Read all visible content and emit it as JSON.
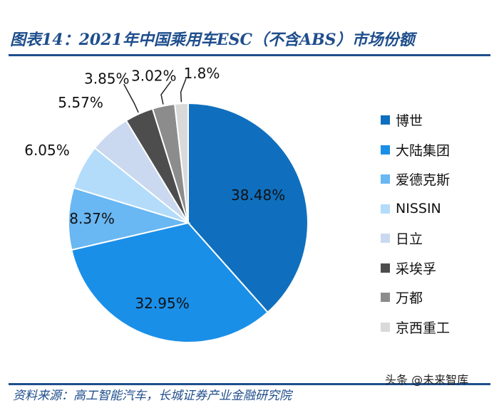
{
  "title": "图表14：2021年中国乘用车ESC（不含ABS）市场份额",
  "source_text": "资料来源：高工智能汽车，长城证券产业金融研究院",
  "watermark_text": "头条 @未来智库",
  "chart_data": {
    "type": "pie",
    "title": "图表14：2021年中国乘用车ESC（不含ABS）市场份额",
    "legend_position": "right",
    "slices": [
      {
        "name": "博世",
        "value": 38.48,
        "label": "38.48%",
        "color": "#0f6fbe"
      },
      {
        "name": "大陆集团",
        "value": 32.95,
        "label": "32.95%",
        "color": "#1a8fe8"
      },
      {
        "name": "爱德克斯",
        "value": 8.37,
        "label": "8.37%",
        "color": "#69b7f3"
      },
      {
        "name": "NISSIN",
        "value": 6.05,
        "label": "6.05%",
        "color": "#b3dcfa"
      },
      {
        "name": "日立",
        "value": 5.57,
        "label": "5.57%",
        "color": "#cad9ef"
      },
      {
        "name": "采埃孚",
        "value": 3.85,
        "label": "3.85%",
        "color": "#4d4d4d"
      },
      {
        "name": "万都",
        "value": 3.02,
        "label": "3.02%",
        "color": "#8c8c8c"
      },
      {
        "name": "京西重工",
        "value": 1.8,
        "label": "1.8%",
        "color": "#d9d9d9"
      }
    ]
  }
}
